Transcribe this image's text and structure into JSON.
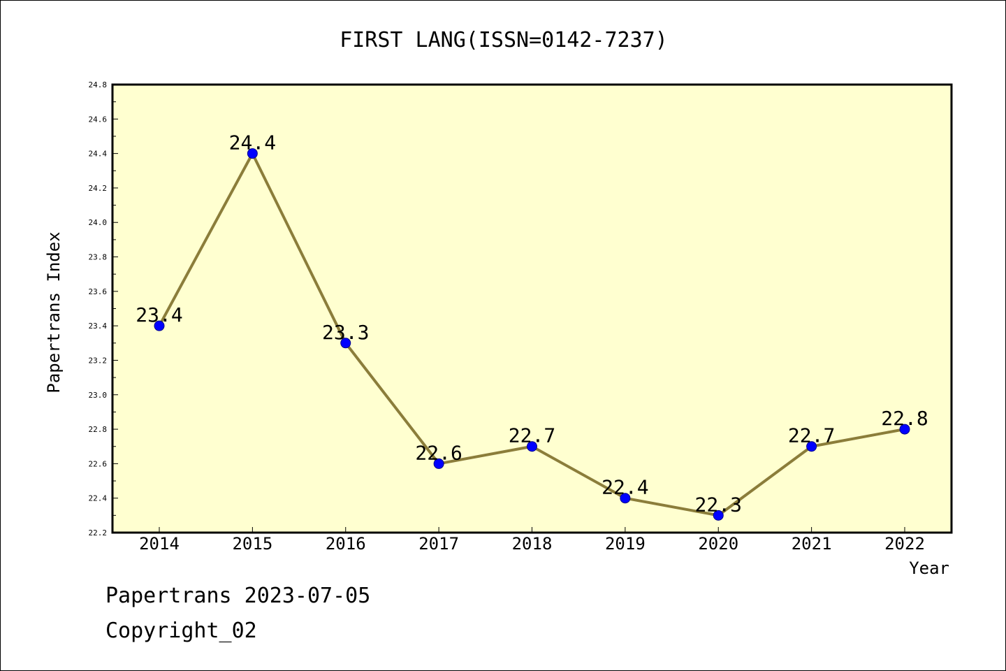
{
  "chart_data": {
    "type": "line",
    "title": "FIRST LANG(ISSN=0142-7237)",
    "xlabel": "Year",
    "ylabel": "Papertrans Index",
    "categories": [
      "2014",
      "2015",
      "2016",
      "2017",
      "2018",
      "2019",
      "2020",
      "2021",
      "2022"
    ],
    "series": [
      {
        "values": [
          23.4,
          24.4,
          23.3,
          22.6,
          22.7,
          22.4,
          22.3,
          22.7,
          22.8
        ]
      }
    ],
    "data_labels": [
      "23.4",
      "24.4",
      "23.3",
      "22.6",
      "22.7",
      "22.4",
      "22.3",
      "22.7",
      "22.8"
    ],
    "ylim": [
      22.2,
      24.8
    ],
    "yticks": [
      "22.2",
      "22.4",
      "22.6",
      "22.8",
      "23.0",
      "23.2",
      "23.4",
      "23.6",
      "23.8",
      "24.0",
      "24.2",
      "24.4",
      "24.6",
      "24.8"
    ],
    "grid": false,
    "colors": {
      "plot_background": "#ffffd0",
      "line": "#8b7d3a",
      "marker": "#0000ff"
    }
  },
  "footer": {
    "line1": "Papertrans 2023-07-05",
    "line2": "Copyright_02"
  }
}
